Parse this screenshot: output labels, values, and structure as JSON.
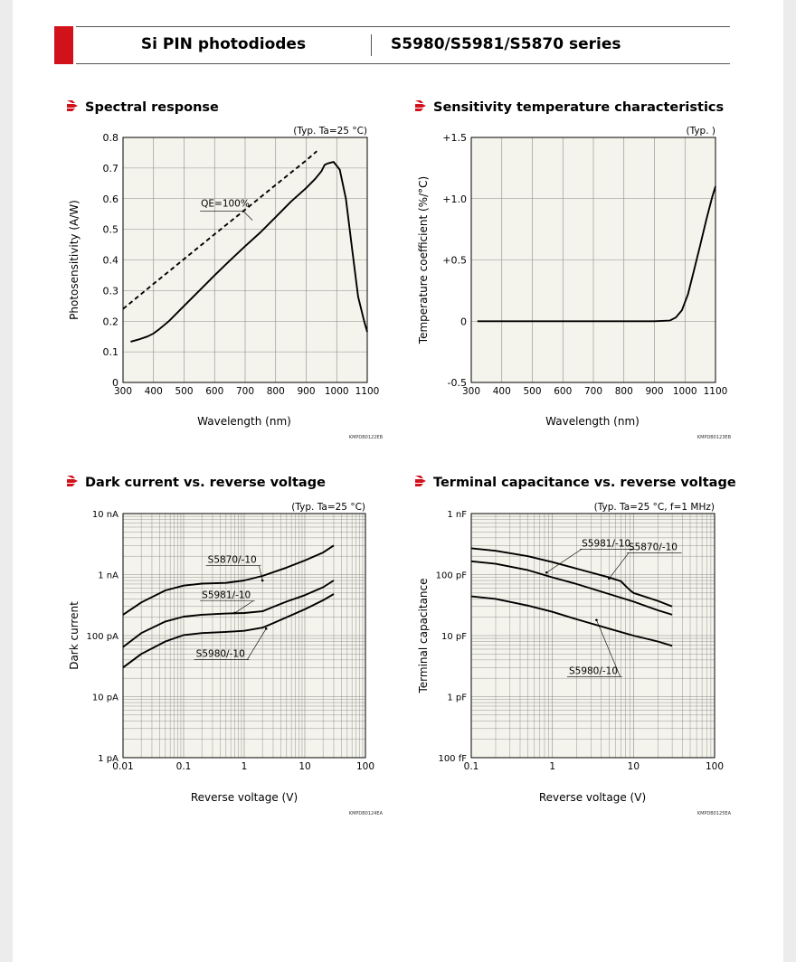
{
  "header": {
    "product_type": "Si PIN photodiodes",
    "series": "S5980/S5981/S5870 series"
  },
  "colors": {
    "accent": "#d1121b",
    "plot_bg": "#f5f4ec",
    "grid": "#8a8a8a"
  },
  "chart_data": [
    {
      "id": "spectral",
      "type": "line",
      "title": "Spectral response",
      "condition": "(Typ. Ta=25 °C)",
      "xlabel": "Wavelength (nm)",
      "ylabel": "Photosensitivity (A/W)",
      "xlim": [
        300,
        1100
      ],
      "ylim": [
        0,
        0.8
      ],
      "x_ticks": [
        "300",
        "400",
        "500",
        "600",
        "700",
        "800",
        "900",
        "1000",
        "1100"
      ],
      "y_ticks": [
        "0",
        "0.1",
        "0.2",
        "0.3",
        "0.4",
        "0.5",
        "0.6",
        "0.7",
        "0.8"
      ],
      "code": "KMPDB0122EB",
      "series": [
        {
          "x": [
            325,
            350,
            380,
            400,
            420,
            450,
            500,
            550,
            600,
            650,
            700,
            750,
            800,
            850,
            900,
            930,
            950,
            960,
            970,
            990,
            1010,
            1030,
            1050,
            1070,
            1090,
            1100
          ],
          "y": [
            0.133,
            0.14,
            0.15,
            0.16,
            0.175,
            0.2,
            0.25,
            0.3,
            0.35,
            0.398,
            0.445,
            0.49,
            0.54,
            0.59,
            0.635,
            0.665,
            0.69,
            0.71,
            0.715,
            0.72,
            0.695,
            0.6,
            0.44,
            0.28,
            0.2,
            0.165
          ],
          "style": "solid"
        },
        {
          "x": [
            300,
            400,
            500,
            600,
            700,
            800,
            900,
            935
          ],
          "y": [
            0.24,
            0.322,
            0.403,
            0.484,
            0.564,
            0.645,
            0.725,
            0.755
          ],
          "style": "dashed"
        }
      ],
      "annotations": [
        {
          "text": "QE=100%",
          "x": 650,
          "y": 0.565
        }
      ]
    },
    {
      "id": "temp",
      "type": "line",
      "title": "Sensitivity temperature characteristics",
      "condition": "(Typ. )",
      "xlabel": "Wavelength (nm)",
      "ylabel": "Temperature coefficient (%/°C)",
      "xlim": [
        300,
        1100
      ],
      "ylim": [
        -0.5,
        1.5
      ],
      "x_ticks": [
        "300",
        "400",
        "500",
        "600",
        "700",
        "800",
        "900",
        "1000",
        "1100"
      ],
      "y_ticks": [
        "-0.5",
        "0",
        "+0.5",
        "+1.0",
        "+1.5"
      ],
      "code": "KMPDB0123EB",
      "series": [
        {
          "x": [
            320,
            500,
            700,
            900,
            950,
            970,
            990,
            1010,
            1030,
            1050,
            1070,
            1090,
            1100
          ],
          "y": [
            0,
            0,
            0,
            0,
            0.005,
            0.03,
            0.09,
            0.22,
            0.42,
            0.62,
            0.83,
            1.02,
            1.1
          ],
          "style": "solid"
        }
      ]
    },
    {
      "id": "dark",
      "type": "line",
      "title": "Dark current vs. reverse voltage",
      "condition": "(Typ. Ta=25 °C)",
      "xlabel": "Reverse voltage (V)",
      "ylabel": "Dark current",
      "xscale": "log",
      "yscale": "log",
      "xlim": [
        0.01,
        100
      ],
      "ylim": [
        1e-12,
        1e-08
      ],
      "x_ticks": [
        "0.01",
        "0.1",
        "1",
        "10",
        "100"
      ],
      "y_ticks": [
        "1 pA",
        "10 pA",
        "100 pA",
        "1 nA",
        "10 nA"
      ],
      "code": "KMPDB0124EA",
      "series": [
        {
          "name": "S5870/-10",
          "x": [
            0.01,
            0.02,
            0.05,
            0.1,
            0.2,
            0.5,
            1,
            2,
            5,
            10,
            20,
            30
          ],
          "y": [
            2.2e-10,
            3.5e-10,
            5.5e-10,
            6.6e-10,
            7.1e-10,
            7.3e-10,
            8e-10,
            9.5e-10,
            1.3e-09,
            1.7e-09,
            2.3e-09,
            3e-09
          ]
        },
        {
          "name": "S5981/-10",
          "x": [
            0.01,
            0.02,
            0.05,
            0.1,
            0.2,
            0.5,
            1,
            2,
            3,
            5,
            10,
            20,
            30
          ],
          "y": [
            6.5e-11,
            1.1e-10,
            1.7e-10,
            2.05e-10,
            2.2e-10,
            2.3e-10,
            2.35e-10,
            2.5e-10,
            2.95e-10,
            3.6e-10,
            4.6e-10,
            6.2e-10,
            8e-10
          ]
        },
        {
          "name": "S5980/-10",
          "x": [
            0.01,
            0.02,
            0.05,
            0.1,
            0.2,
            0.5,
            1,
            2,
            3,
            5,
            10,
            20,
            30
          ],
          "y": [
            3e-11,
            5e-11,
            8e-11,
            1.02e-10,
            1.1e-10,
            1.15e-10,
            1.2e-10,
            1.35e-10,
            1.6e-10,
            2e-10,
            2.7e-10,
            3.8e-10,
            4.8e-10
          ]
        }
      ],
      "annotations": [
        {
          "text": "S5870/-10",
          "x": 0.25,
          "y": 1.55e-09,
          "px": 2,
          "py": 8e-10
        },
        {
          "text": "S5981/-10",
          "x": 0.2,
          "y": 4.1e-10,
          "px": 0.7,
          "py": 2.35e-10
        },
        {
          "text": "S5980/-10",
          "x": 0.16,
          "y": 4.5e-11,
          "px": 2.3,
          "py": 1.3e-10
        }
      ]
    },
    {
      "id": "cap",
      "type": "line",
      "title": "Terminal capacitance vs. reverse voltage",
      "condition": "(Typ. Ta=25 °C, f=1 MHz)",
      "xlabel": "Reverse voltage (V)",
      "ylabel": "Terminal capacitance",
      "xscale": "log",
      "yscale": "log",
      "xlim": [
        0.1,
        100
      ],
      "ylim": [
        1e-13,
        1e-09
      ],
      "x_ticks": [
        "0.1",
        "1",
        "10",
        "100"
      ],
      "y_ticks": [
        "100 fF",
        "1 pF",
        "10 pF",
        "100 pF",
        "1 nF"
      ],
      "code": "KMPDB0125EA",
      "series": [
        {
          "name": "S5870/-10",
          "x": [
            0.1,
            0.2,
            0.5,
            1,
            2,
            5,
            7,
            8,
            9,
            10,
            20,
            30
          ],
          "y": [
            2.7e-10,
            2.45e-10,
            2e-10,
            1.6e-10,
            1.25e-10,
            9e-11,
            7.8e-11,
            6.5e-11,
            5.6e-11,
            5e-11,
            3.7e-11,
            3e-11
          ]
        },
        {
          "name": "S5981/-10",
          "x": [
            0.1,
            0.2,
            0.5,
            1,
            2,
            5,
            10,
            20,
            30
          ],
          "y": [
            1.65e-10,
            1.5e-10,
            1.18e-10,
            9e-11,
            7e-11,
            4.8e-11,
            3.6e-11,
            2.6e-11,
            2.2e-11
          ]
        },
        {
          "name": "S5980/-10",
          "x": [
            0.1,
            0.2,
            0.5,
            1,
            2,
            5,
            10,
            20,
            30
          ],
          "y": [
            4.4e-11,
            4e-11,
            3.1e-11,
            2.45e-11,
            1.85e-11,
            1.3e-11,
            1e-11,
            8e-12,
            6.8e-12
          ]
        }
      ],
      "annotations": [
        {
          "text": "S5981/-10",
          "x": 2.3,
          "y": 2.9e-10,
          "px": 0.85,
          "py": 1.08e-10
        },
        {
          "text": "S5870/-10",
          "x": 8.7,
          "y": 2.5e-10,
          "px": 5,
          "py": 8.6e-11
        },
        {
          "text": "S5980/-10",
          "x": 1.6,
          "y": 2.35e-12,
          "px": 3.5,
          "py": 1.8e-11
        }
      ]
    }
  ]
}
